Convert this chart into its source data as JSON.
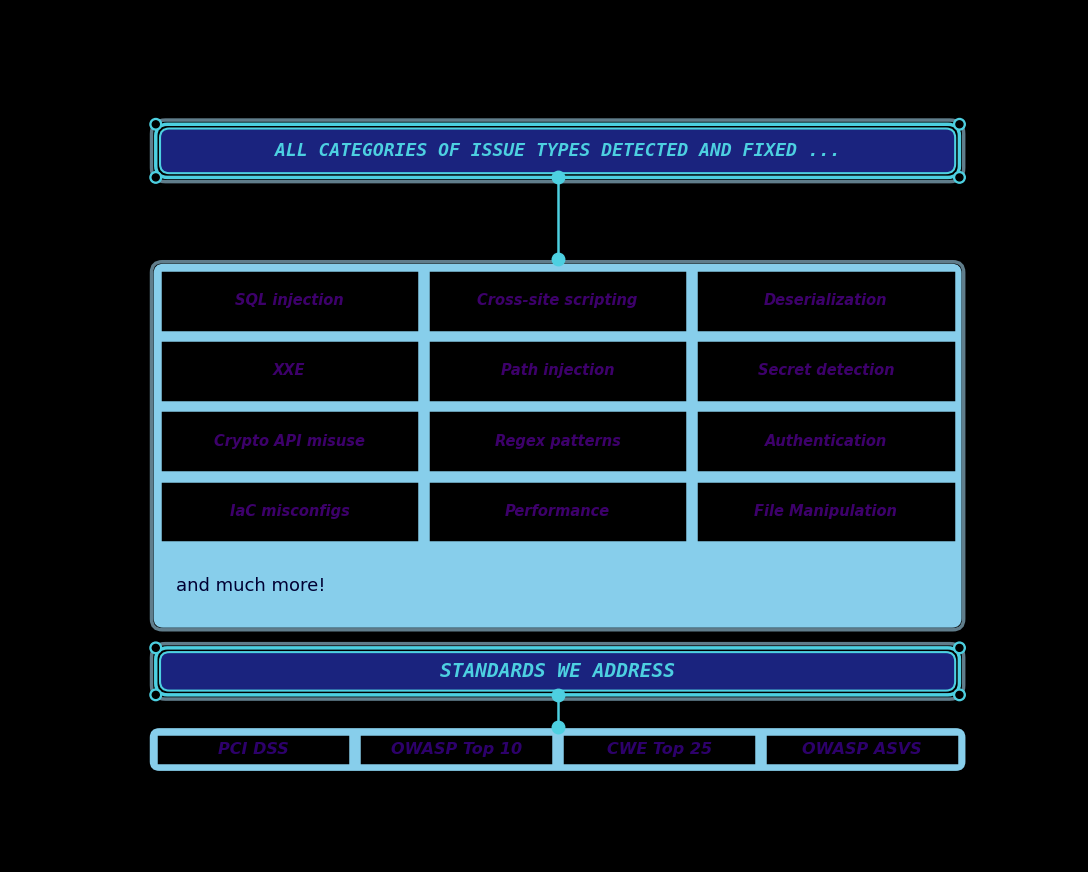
{
  "bg_color": "#000000",
  "title_box_text": "ALL CATEGORIES OF ISSUE TYPES DETECTED AND FIXED ...",
  "title_box_bg": "#1a237e",
  "title_box_border": "#4dd0e1",
  "title_text_color": "#4dd0e1",
  "outer_border_color": "#607d8b",
  "connector_color": "#4dd0e1",
  "grid_bg": "#87ceeb",
  "cell_bg": "#000000",
  "cell_border": "#87ceeb",
  "cell_text_color": "#3d006b",
  "items": [
    [
      "SQL injection",
      "Cross-site scripting",
      "Deserialization"
    ],
    [
      "XXE",
      "Path injection",
      "Secret detection"
    ],
    [
      "Crypto API misuse",
      "Regex patterns",
      "Authentication"
    ],
    [
      "IaC misconfigs",
      "Performance",
      "File Manipulation"
    ]
  ],
  "more_text": "and much more!",
  "more_text_color": "#000033",
  "more_bg": "#87ceeb",
  "standards_box_text": "STANDARDS WE ADDRESS",
  "standards_bg": "#1a237e",
  "standards_border": "#4dd0e1",
  "standards_text_color": "#4dd0e1",
  "standards_items": [
    "PCI DSS",
    "OWASP Top 10",
    "CWE Top 25",
    "OWASP ASVS"
  ],
  "standards_cell_text_color": "#2d006b",
  "fig_w": 10.88,
  "fig_h": 8.72
}
